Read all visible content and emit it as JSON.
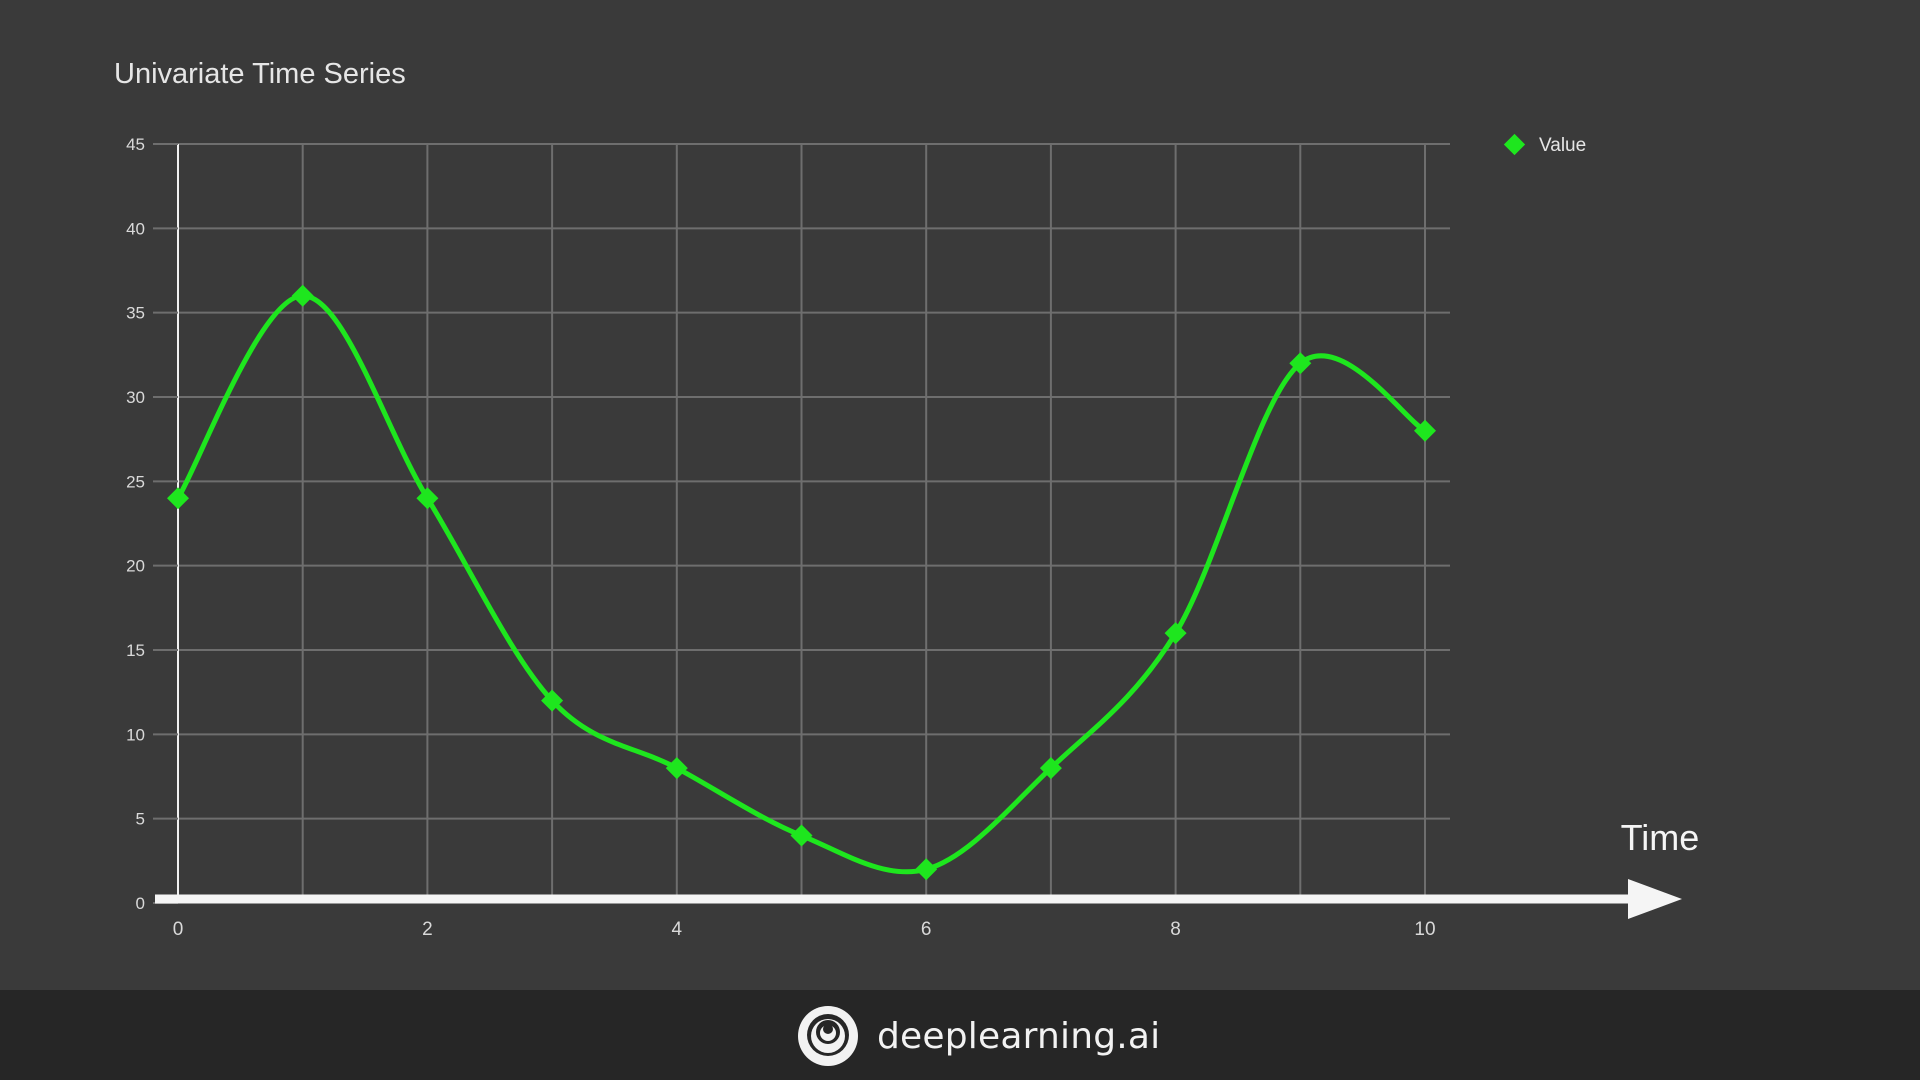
{
  "colors": {
    "background": "#3a3a3a",
    "grid": "#6e6e6e",
    "axis": "#f5f5f5",
    "series": "#1ee61e",
    "text": "#d9d9d9",
    "footer": "#262626"
  },
  "brand": {
    "name": "deeplearning.ai",
    "logo_icon": "deeplearning-logo-icon"
  },
  "chart_data": {
    "type": "line",
    "title": "Univariate Time Series",
    "xlabel": "Time",
    "ylabel": "",
    "xlim": [
      0,
      10
    ],
    "ylim": [
      0,
      45
    ],
    "x_ticks": [
      0,
      2,
      4,
      6,
      8,
      10
    ],
    "y_ticks": [
      0,
      5,
      10,
      15,
      20,
      25,
      30,
      35,
      40,
      45
    ],
    "grid": true,
    "smooth": true,
    "legend_position": "top-right",
    "series": [
      {
        "name": "Value",
        "marker": "diamond",
        "x": [
          0,
          1,
          2,
          3,
          4,
          5,
          6,
          7,
          8,
          9,
          10
        ],
        "values": [
          24,
          36,
          24,
          12,
          8,
          4,
          2,
          8,
          16,
          32,
          28
        ]
      }
    ]
  }
}
